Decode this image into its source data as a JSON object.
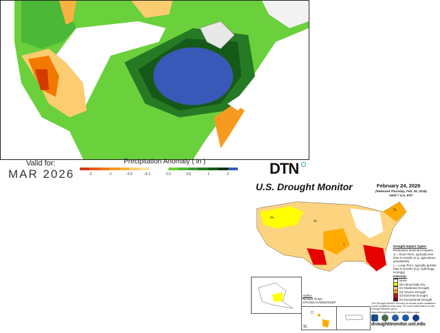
{
  "precip": {
    "valid_label": "Valid for:",
    "valid_value": "MAR 2026",
    "legend_title": "Precipitation Anomaly ( in )",
    "neg_colors": [
      "#d43a00",
      "#e85a00",
      "#f27800",
      "#f79a20",
      "#f9b240",
      "#fbcc70",
      "#fde2a0"
    ],
    "neg_ticks": [
      "-2",
      "-1",
      "-0.5",
      "-0.1"
    ],
    "pos_colors": [
      "#6ad03c",
      "#4cb838",
      "#3a9a30",
      "#267a24",
      "#155a18",
      "#0c3410",
      "#3a58b8"
    ],
    "pos_ticks": [
      "0.1",
      "0.5",
      "1",
      "2"
    ]
  },
  "brand": {
    "logo": "DTN"
  },
  "drought": {
    "title": "U.S. Drought Monitor",
    "date": "February 24, 2026",
    "released": "(Released Thursday, Feb. 26, 2026)",
    "valid": "Valid 7 a.m. EST",
    "impact_title": "Drought Impact Types:",
    "impact_items": [
      "Delineates dominant impacts",
      "S = Short-Term, typically less than 6 months (e.g. agriculture, grasslands)",
      "L = Long-Term, typically greater than 6 months (e.g. hydrology, ecology)"
    ],
    "intensity_title": "Intensity:",
    "intensity": [
      {
        "label": "None",
        "color": "#ffffff"
      },
      {
        "label": "D0 Abnormally Dry",
        "color": "#ffff00"
      },
      {
        "label": "D1 Moderate Drought",
        "color": "#fcd37f"
      },
      {
        "label": "D2 Severe Drought",
        "color": "#ffaa00"
      },
      {
        "label": "D3 Extreme Drought",
        "color": "#e60000"
      },
      {
        "label": "D4 Exceptional Drought",
        "color": "#730000"
      }
    ],
    "note": "The Drought Monitor focuses on broad-scale conditions. Local conditions may vary. For more information on the Drought Monitor, go to https://droughtmonitor.unl.edu/About.aspx",
    "author_label": "Author:",
    "author": "Richard Tinker",
    "author_org": "CPC/NOAA/NWS/NCEP",
    "region_labels": [
      "SL",
      "SL",
      "L",
      "SL",
      "SL"
    ],
    "logos": [
      "USDA",
      "NDMC",
      "DOC",
      "NOAA",
      "NASA"
    ],
    "url": "droughtmonitor.unl.edu"
  }
}
